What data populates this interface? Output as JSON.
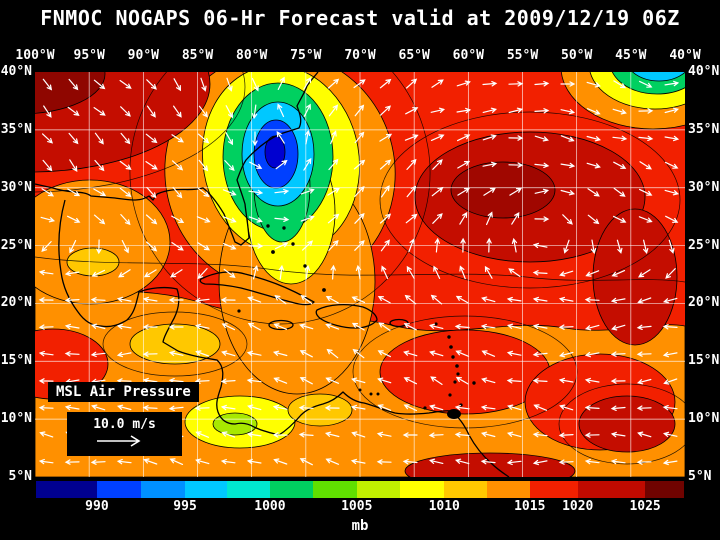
{
  "title": "FNMOC NOGAPS 06-Hr Forecast valid at 2009/12/19 06Z",
  "axes": {
    "lon_labels": [
      "100°W",
      "95°W",
      "90°W",
      "85°W",
      "80°W",
      "75°W",
      "70°W",
      "65°W",
      "60°W",
      "55°W",
      "50°W",
      "45°W",
      "40°W"
    ],
    "lat_labels": [
      "40°N",
      "35°N",
      "30°N",
      "25°N",
      "20°N",
      "15°N",
      "10°N",
      "5°N"
    ]
  },
  "legend": {
    "field_label": "MSL Air Pressure",
    "wind_scale_label": "10.0 m/s"
  },
  "colorbar": {
    "units": "mb",
    "tick_labels": [
      "990",
      "995",
      "1000",
      "1005",
      "1010",
      "1015",
      "1020",
      "1025"
    ],
    "segment_colors": [
      "#000090",
      "#0040ff",
      "#0090ff",
      "#00c8ff",
      "#00e8d0",
      "#00d060",
      "#60e000",
      "#c0f000",
      "#ffff00",
      "#ffc800",
      "#ff9000",
      "#f22000",
      "#c00a00",
      "#700300"
    ]
  },
  "chart_data": {
    "type": "heatmap",
    "variable": "MSL Air Pressure",
    "units": "mb",
    "model": "FNMOC NOGAPS",
    "forecast_hour": "06-Hr",
    "valid_time": "2009/12/19 06Z",
    "lon_range": [
      "100°W",
      "40°W"
    ],
    "lat_range": [
      "5°N",
      "40°N"
    ],
    "scale_levels_mb": [
      990,
      995,
      1000,
      1005,
      1010,
      1015,
      1020,
      1025
    ],
    "wind_reference_speed_ms": 10.0,
    "features": [
      {
        "type": "low",
        "approx_location": "77°W 33°N",
        "approx_central_pressure_mb": 991
      },
      {
        "type": "low",
        "approx_location": "43°W 40°N",
        "approx_central_pressure_mb": 996
      },
      {
        "type": "high",
        "approx_location": "57°W 29°N",
        "approx_pressure_mb": 1022
      },
      {
        "type": "high",
        "approx_location": "100°W 39°N",
        "approx_pressure_mb": 1023
      },
      {
        "type": "trough",
        "approx_location": "orange/yellow trough extending south from East Coast low across Cuba into western Caribbean",
        "approx_pressure_mb": 1008
      }
    ]
  }
}
